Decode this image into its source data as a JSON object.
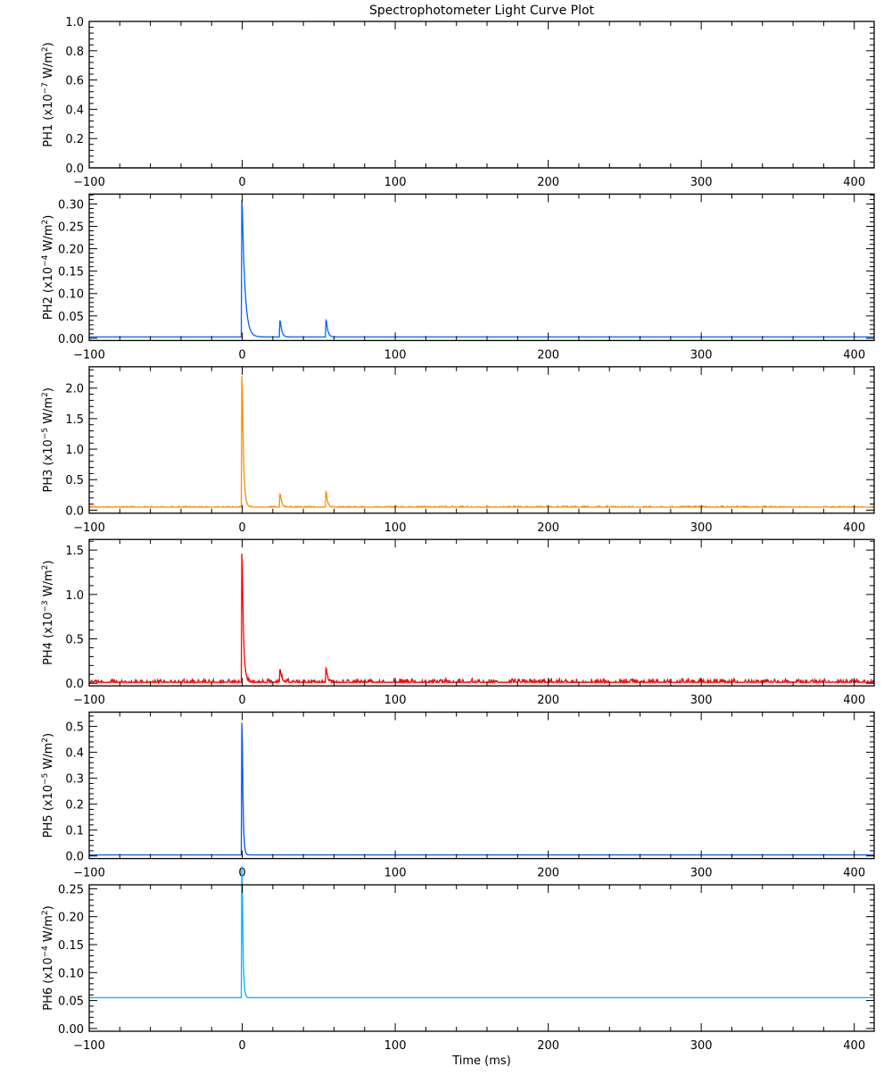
{
  "chart_data": {
    "type": "line",
    "title": "Spectrophotometer Light Curve Plot",
    "xlabel": "Time (ms)",
    "xlim": [
      -100,
      413
    ],
    "xticks": [
      -100,
      0,
      100,
      200,
      300,
      400
    ],
    "panels": [
      {
        "name": "PH1",
        "exponent": "-7",
        "unit": "W/m",
        "color": "#3a2a9a",
        "ylim": [
          0,
          1.0
        ],
        "yticks": [
          0.0,
          0.2,
          0.4,
          0.6,
          0.8,
          1.0
        ],
        "decimals": 1,
        "baseline": 0.0,
        "noise": 0,
        "peaks": []
      },
      {
        "name": "PH2",
        "exponent": "-4",
        "unit": "W/m",
        "color": "#0062ff",
        "ylim": [
          -0.005,
          0.322
        ],
        "yticks": [
          0.0,
          0.05,
          0.1,
          0.15,
          0.2,
          0.25,
          0.3
        ],
        "decimals": 2,
        "baseline": 0.003,
        "noise": 0,
        "peaks": [
          {
            "t": 0,
            "value": 0.305,
            "decay_ms": 1.8
          },
          {
            "t": 25,
            "value": 0.035,
            "decay_ms": 1.0
          },
          {
            "t": 55,
            "value": 0.037,
            "decay_ms": 1.0
          }
        ]
      },
      {
        "name": "PH3",
        "exponent": "-5",
        "unit": "W/m",
        "color": "#ff8c00",
        "ylim": [
          -0.05,
          2.35
        ],
        "yticks": [
          0.0,
          0.5,
          1.0,
          1.5,
          2.0
        ],
        "decimals": 1,
        "baseline": 0.05,
        "noise": 0.015,
        "peaks": [
          {
            "t": 0,
            "value": 2.15,
            "decay_ms": 0.9
          },
          {
            "t": 25,
            "value": 0.2,
            "decay_ms": 0.9
          },
          {
            "t": 55,
            "value": 0.25,
            "decay_ms": 0.8
          }
        ]
      },
      {
        "name": "PH4",
        "exponent": "-3",
        "unit": "W/m",
        "color": "#ff0000",
        "ylim": [
          -0.03,
          1.62
        ],
        "yticks": [
          0.0,
          0.5,
          1.0,
          1.5
        ],
        "decimals": 1,
        "baseline": 0.01,
        "noise": 0.035,
        "peaks": [
          {
            "t": 0,
            "value": 1.45,
            "decay_ms": 0.9
          },
          {
            "t": 25,
            "value": 0.14,
            "decay_ms": 0.9
          },
          {
            "t": 55,
            "value": 0.16,
            "decay_ms": 0.8
          }
        ]
      },
      {
        "name": "PH5",
        "exponent": "-5",
        "unit": "W/m",
        "color": "#0050ff",
        "ylim": [
          -0.01,
          0.555
        ],
        "yticks": [
          0.0,
          0.1,
          0.2,
          0.3,
          0.4,
          0.5
        ],
        "decimals": 1,
        "baseline": 0.004,
        "noise": 0,
        "peaks": [
          {
            "t": 0,
            "value": 0.51,
            "decay_ms": 0.6
          }
        ]
      },
      {
        "name": "PH6",
        "exponent": "-4",
        "unit": "W/m",
        "color": "#00b0ff",
        "ylim": [
          -0.005,
          0.257
        ],
        "yticks": [
          0.0,
          0.05,
          0.1,
          0.15,
          0.2,
          0.25
        ],
        "decimals": 2,
        "baseline": 0.055,
        "noise": 0,
        "peaks": [
          {
            "t": 0,
            "value": 0.235,
            "decay_ms": 0.6
          }
        ]
      }
    ]
  }
}
